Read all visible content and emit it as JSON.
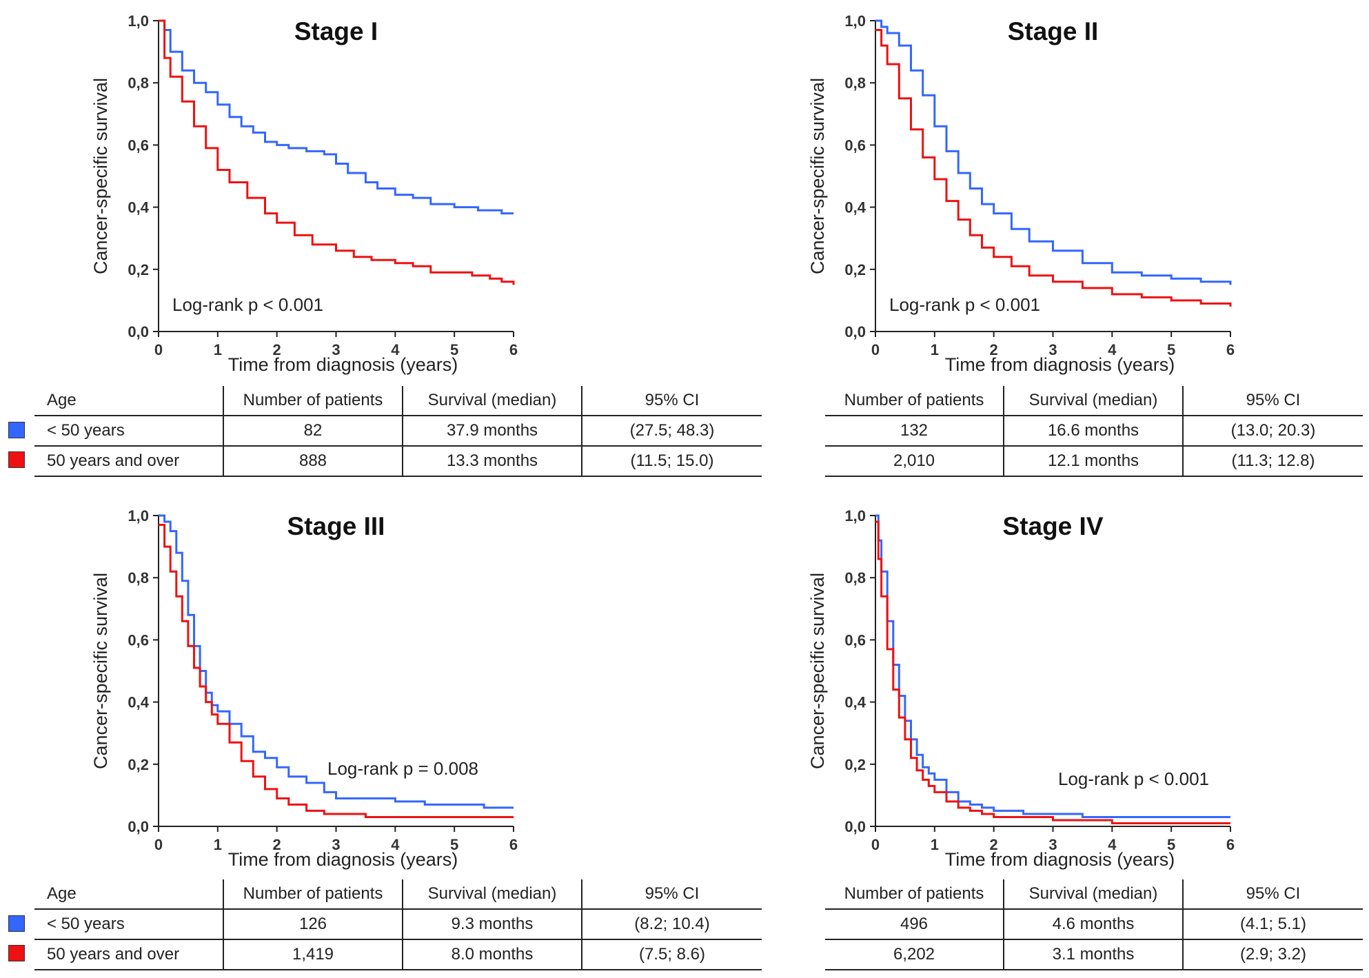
{
  "colors": {
    "young": "#3366ff",
    "old": "#ee1111",
    "axis": "#222222"
  },
  "common": {
    "xlabel": "Time from diagnosis (years)",
    "ylabel": "Cancer-specific survival",
    "table_headers": {
      "age": "Age",
      "n": "Number of patients",
      "survival": "Survival (median)",
      "ci": "95% CI"
    },
    "groups": [
      "< 50 years",
      "50 years and over"
    ]
  },
  "chart_data": [
    {
      "type": "line",
      "title": "Stage I",
      "annotation": "Log-rank p < 0.001",
      "xlabel": "Time from diagnosis (years)",
      "ylabel": "Cancer-specific survival",
      "xlim": [
        0,
        6
      ],
      "ylim": [
        0,
        1
      ],
      "xticks": [
        "0",
        "1",
        "2",
        "3",
        "4",
        "5",
        "6"
      ],
      "yticks": [
        "0,0",
        "0,2",
        "0,4",
        "0,6",
        "0,8",
        "1,0"
      ],
      "series": [
        {
          "name": "< 50 years",
          "color": "#3366ff",
          "x": [
            0,
            0.1,
            0.2,
            0.4,
            0.6,
            0.8,
            1.0,
            1.2,
            1.4,
            1.6,
            1.8,
            2.0,
            2.2,
            2.5,
            2.8,
            3.0,
            3.2,
            3.5,
            3.7,
            4.0,
            4.3,
            4.6,
            5.0,
            5.4,
            5.8,
            6.0
          ],
          "y": [
            1.0,
            0.97,
            0.9,
            0.84,
            0.8,
            0.77,
            0.73,
            0.69,
            0.66,
            0.64,
            0.61,
            0.6,
            0.59,
            0.58,
            0.57,
            0.54,
            0.51,
            0.48,
            0.46,
            0.44,
            0.43,
            0.41,
            0.4,
            0.39,
            0.38,
            0.38
          ]
        },
        {
          "name": "50 years and over",
          "color": "#ee1111",
          "x": [
            0,
            0.1,
            0.2,
            0.4,
            0.6,
            0.8,
            1.0,
            1.2,
            1.5,
            1.8,
            2.0,
            2.3,
            2.6,
            3.0,
            3.3,
            3.6,
            4.0,
            4.3,
            4.6,
            5.0,
            5.3,
            5.6,
            5.8,
            6.0
          ],
          "y": [
            1.0,
            0.88,
            0.82,
            0.74,
            0.66,
            0.59,
            0.52,
            0.48,
            0.43,
            0.38,
            0.35,
            0.31,
            0.28,
            0.26,
            0.24,
            0.23,
            0.22,
            0.21,
            0.19,
            0.19,
            0.18,
            0.17,
            0.16,
            0.15
          ]
        }
      ],
      "table": [
        {
          "group": "< 50 years",
          "n": "82",
          "survival": "37.9 months",
          "ci": "(27.5; 48.3)"
        },
        {
          "group": "50 years and over",
          "n": "888",
          "survival": "13.3 months",
          "ci": "(11.5; 15.0)"
        }
      ]
    },
    {
      "type": "line",
      "title": "Stage II",
      "annotation": "Log-rank p < 0.001",
      "xlabel": "Time from diagnosis (years)",
      "ylabel": "Cancer-specific survival",
      "xlim": [
        0,
        6
      ],
      "ylim": [
        0,
        1
      ],
      "xticks": [
        "0",
        "1",
        "2",
        "3",
        "4",
        "5",
        "6"
      ],
      "yticks": [
        "0,0",
        "0,2",
        "0,4",
        "0,6",
        "0,8",
        "1,0"
      ],
      "series": [
        {
          "name": "< 50 years",
          "color": "#3366ff",
          "x": [
            0,
            0.1,
            0.2,
            0.4,
            0.6,
            0.8,
            1.0,
            1.2,
            1.4,
            1.6,
            1.8,
            2.0,
            2.3,
            2.6,
            3.0,
            3.5,
            4.0,
            4.5,
            5.0,
            5.5,
            6.0
          ],
          "y": [
            1.0,
            0.98,
            0.96,
            0.92,
            0.84,
            0.76,
            0.66,
            0.58,
            0.51,
            0.46,
            0.41,
            0.38,
            0.33,
            0.29,
            0.26,
            0.22,
            0.19,
            0.18,
            0.17,
            0.16,
            0.15
          ]
        },
        {
          "name": "50 years and over",
          "color": "#ee1111",
          "x": [
            0,
            0.1,
            0.2,
            0.4,
            0.6,
            0.8,
            1.0,
            1.2,
            1.4,
            1.6,
            1.8,
            2.0,
            2.3,
            2.6,
            3.0,
            3.5,
            4.0,
            4.5,
            5.0,
            5.5,
            6.0
          ],
          "y": [
            0.97,
            0.92,
            0.86,
            0.75,
            0.65,
            0.56,
            0.49,
            0.42,
            0.36,
            0.31,
            0.27,
            0.24,
            0.21,
            0.18,
            0.16,
            0.14,
            0.12,
            0.11,
            0.1,
            0.09,
            0.08
          ]
        }
      ],
      "table": [
        {
          "group": "< 50 years",
          "n": "132",
          "survival": "16.6 months",
          "ci": "(13.0; 20.3)"
        },
        {
          "group": "50 years and over",
          "n": "2,010",
          "survival": "12.1 months",
          "ci": "(11.3; 12.8)"
        }
      ]
    },
    {
      "type": "line",
      "title": "Stage III",
      "annotation": "Log-rank p = 0.008",
      "xlabel": "Time from diagnosis (years)",
      "ylabel": "Cancer-specific survival",
      "xlim": [
        0,
        6
      ],
      "ylim": [
        0,
        1
      ],
      "xticks": [
        "0",
        "1",
        "2",
        "3",
        "4",
        "5",
        "6"
      ],
      "yticks": [
        "0,0",
        "0,2",
        "0,4",
        "0,6",
        "0,8",
        "1,0"
      ],
      "series": [
        {
          "name": "< 50 years",
          "color": "#3366ff",
          "x": [
            0,
            0.1,
            0.2,
            0.3,
            0.4,
            0.5,
            0.6,
            0.7,
            0.8,
            0.9,
            1.0,
            1.2,
            1.4,
            1.6,
            1.8,
            2.0,
            2.2,
            2.5,
            2.8,
            3.0,
            3.5,
            4.0,
            4.5,
            5.0,
            5.5,
            6.0
          ],
          "y": [
            1.0,
            0.98,
            0.95,
            0.88,
            0.79,
            0.68,
            0.58,
            0.5,
            0.43,
            0.39,
            0.37,
            0.33,
            0.29,
            0.24,
            0.22,
            0.19,
            0.16,
            0.14,
            0.11,
            0.09,
            0.09,
            0.08,
            0.07,
            0.07,
            0.06,
            0.06
          ]
        },
        {
          "name": "50 years and over",
          "color": "#ee1111",
          "x": [
            0,
            0.1,
            0.2,
            0.3,
            0.4,
            0.5,
            0.6,
            0.7,
            0.8,
            0.9,
            1.0,
            1.2,
            1.4,
            1.6,
            1.8,
            2.0,
            2.2,
            2.5,
            2.8,
            3.0,
            3.5,
            4.0,
            4.5,
            5.0,
            5.5,
            6.0
          ],
          "y": [
            0.97,
            0.9,
            0.82,
            0.74,
            0.66,
            0.58,
            0.51,
            0.45,
            0.4,
            0.36,
            0.33,
            0.27,
            0.21,
            0.16,
            0.12,
            0.09,
            0.07,
            0.05,
            0.04,
            0.04,
            0.03,
            0.03,
            0.03,
            0.03,
            0.03,
            0.03
          ]
        }
      ],
      "table": [
        {
          "group": "< 50 years",
          "n": "126",
          "survival": "9.3 months",
          "ci": "(8.2; 10.4)"
        },
        {
          "group": "50 years and over",
          "n": "1,419",
          "survival": "8.0 months",
          "ci": "(7.5; 8.6)"
        }
      ]
    },
    {
      "type": "line",
      "title": "Stage IV",
      "annotation": "Log-rank p < 0.001",
      "xlabel": "Time from diagnosis (years)",
      "ylabel": "Cancer-specific survival",
      "xlim": [
        0,
        6
      ],
      "ylim": [
        0,
        1
      ],
      "xticks": [
        "0",
        "1",
        "2",
        "3",
        "4",
        "5",
        "6"
      ],
      "yticks": [
        "0,0",
        "0,2",
        "0,4",
        "0,6",
        "0,8",
        "1,0"
      ],
      "series": [
        {
          "name": "< 50 years",
          "color": "#3366ff",
          "x": [
            0,
            0.05,
            0.1,
            0.2,
            0.3,
            0.4,
            0.5,
            0.6,
            0.7,
            0.8,
            0.9,
            1.0,
            1.2,
            1.4,
            1.6,
            1.8,
            2.0,
            2.5,
            3.0,
            3.5,
            4.0,
            5.0,
            6.0
          ],
          "y": [
            1.0,
            0.92,
            0.82,
            0.66,
            0.52,
            0.42,
            0.34,
            0.28,
            0.23,
            0.19,
            0.17,
            0.15,
            0.11,
            0.08,
            0.07,
            0.06,
            0.05,
            0.04,
            0.04,
            0.03,
            0.03,
            0.03,
            0.03
          ]
        },
        {
          "name": "50 years and over",
          "color": "#ee1111",
          "x": [
            0,
            0.05,
            0.1,
            0.2,
            0.3,
            0.4,
            0.5,
            0.6,
            0.7,
            0.8,
            0.9,
            1.0,
            1.2,
            1.4,
            1.6,
            1.8,
            2.0,
            2.5,
            3.0,
            3.5,
            4.0,
            5.0,
            6.0
          ],
          "y": [
            0.98,
            0.86,
            0.74,
            0.57,
            0.44,
            0.35,
            0.28,
            0.22,
            0.18,
            0.15,
            0.13,
            0.11,
            0.08,
            0.06,
            0.05,
            0.04,
            0.03,
            0.03,
            0.02,
            0.02,
            0.01,
            0.01,
            0.01
          ]
        }
      ],
      "table": [
        {
          "group": "< 50 years",
          "n": "496",
          "survival": "4.6 months",
          "ci": "(4.1; 5.1)"
        },
        {
          "group": "50 years and over",
          "n": "6,202",
          "survival": "3.1 months",
          "ci": "(2.9; 3.2)"
        }
      ]
    }
  ]
}
